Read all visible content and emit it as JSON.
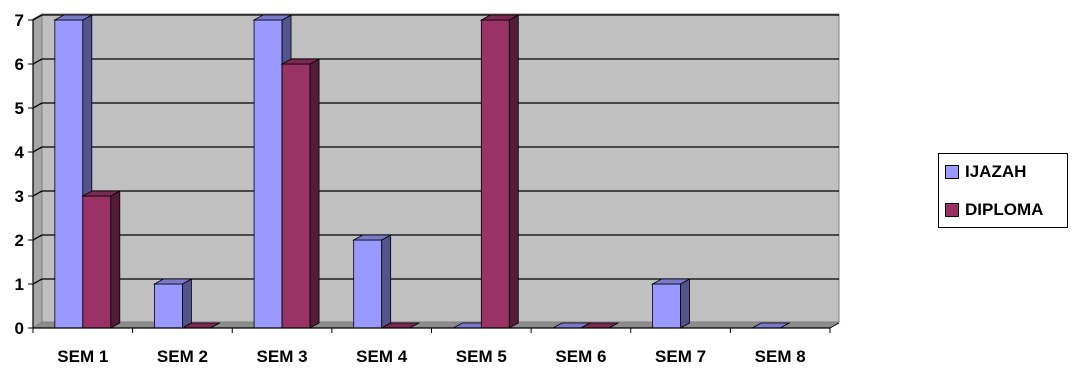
{
  "chart_data": {
    "type": "bar",
    "categories": [
      "SEM 1",
      "SEM 2",
      "SEM 3",
      "SEM 4",
      "SEM 5",
      "SEM 6",
      "SEM 7",
      "SEM 8"
    ],
    "series": [
      {
        "name": "IJAZAH",
        "values": [
          7,
          1,
          7,
          2,
          0,
          0,
          1,
          0
        ],
        "color": "#9999ff"
      },
      {
        "name": "DIPLOMA",
        "values": [
          3,
          0,
          6,
          0,
          7,
          0,
          null,
          null
        ],
        "color": "#993366"
      }
    ],
    "ylim": [
      0,
      7
    ],
    "yticks": [
      "0",
      "1",
      "2",
      "3",
      "4",
      "5",
      "6",
      "7"
    ],
    "grid": true,
    "three_d": true,
    "plot_background": "#c0c0c0",
    "legend_position": "right"
  }
}
